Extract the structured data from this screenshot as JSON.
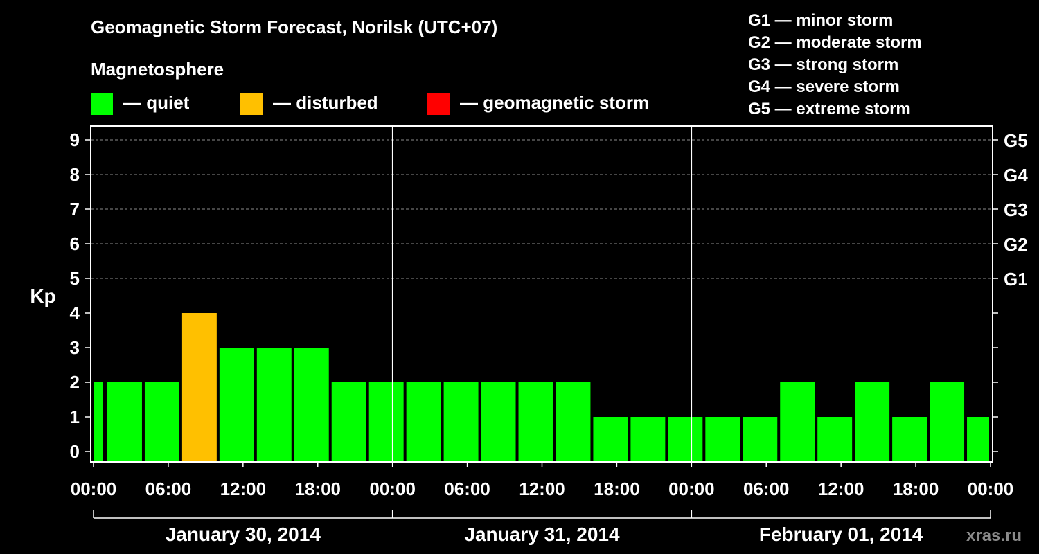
{
  "watermark": "xras.ru",
  "legend": {
    "heading": "Magnetosphere",
    "items": [
      {
        "color": "#00ff00",
        "label": "— quiet"
      },
      {
        "color": "#ffc000",
        "label": "— disturbed"
      },
      {
        "color": "#ff0000",
        "label": "— geomagnetic storm"
      }
    ],
    "storm_scale": [
      "G1 — minor storm",
      "G2 — moderate storm",
      "G3 — strong storm",
      "G4 — severe storm",
      "G5 — extreme storm"
    ]
  },
  "chart_data": {
    "type": "bar",
    "title": "Geomagnetic Storm Forecast, Norilsk (UTC+07)",
    "ylabel": "Kp",
    "ylim": [
      0,
      9
    ],
    "yticks": [
      "0",
      "1",
      "2",
      "3",
      "4",
      "5",
      "6",
      "7",
      "8",
      "9"
    ],
    "right_axis_labels": [
      {
        "kp": 5,
        "label": "G1"
      },
      {
        "kp": 6,
        "label": "G2"
      },
      {
        "kp": 7,
        "label": "G3"
      },
      {
        "kp": 8,
        "label": "G4"
      },
      {
        "kp": 9,
        "label": "G5"
      }
    ],
    "x_tick_labels": [
      "00:00",
      "06:00",
      "12:00",
      "18:00",
      "00:00",
      "06:00",
      "12:00",
      "18:00",
      "00:00",
      "06:00",
      "12:00",
      "18:00",
      "00:00"
    ],
    "days": [
      "January 30, 2014",
      "January 31, 2014",
      "February 01, 2014"
    ],
    "hours_per_bar": 3,
    "first_bar_start_hour": -2,
    "values": [
      2,
      2,
      2,
      4,
      3,
      3,
      3,
      2,
      2,
      2,
      2,
      2,
      2,
      2,
      1,
      1,
      1,
      1,
      1,
      2,
      1,
      2,
      1,
      2,
      1
    ],
    "bar_colors": [
      "#00ff00",
      "#00ff00",
      "#00ff00",
      "#ffc000",
      "#00ff00",
      "#00ff00",
      "#00ff00",
      "#00ff00",
      "#00ff00",
      "#00ff00",
      "#00ff00",
      "#00ff00",
      "#00ff00",
      "#00ff00",
      "#00ff00",
      "#00ff00",
      "#00ff00",
      "#00ff00",
      "#00ff00",
      "#00ff00",
      "#00ff00",
      "#00ff00",
      "#00ff00",
      "#00ff00",
      "#00ff00"
    ],
    "grid_lines": [
      5,
      6,
      7,
      8,
      9
    ]
  }
}
